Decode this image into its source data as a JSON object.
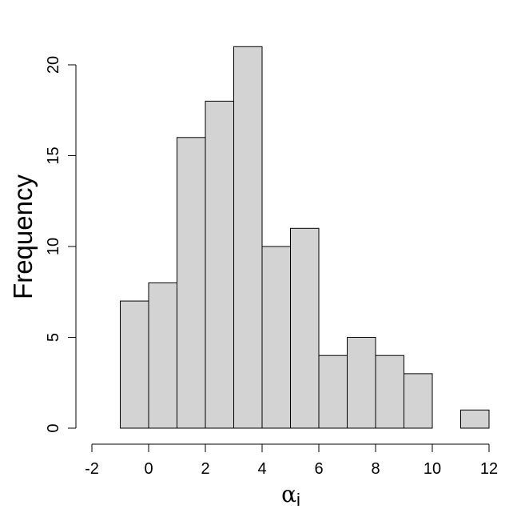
{
  "chart_data": {
    "type": "bar",
    "subtype": "histogram",
    "bin_edges": [
      -1,
      0,
      1,
      2,
      3,
      4,
      5,
      6,
      7,
      8,
      9,
      10,
      11,
      12
    ],
    "values": [
      7,
      8,
      16,
      18,
      21,
      10,
      11,
      4,
      5,
      4,
      3,
      0,
      1
    ],
    "xlabel_symbol": "α",
    "xlabel_subscript": "i",
    "ylabel": "Frequency",
    "xlim": [
      -2,
      12
    ],
    "ylim": [
      0,
      21
    ],
    "xticks": [
      "-2",
      "0",
      "2",
      "4",
      "6",
      "8",
      "10",
      "12"
    ],
    "yticks": [
      "0",
      "5",
      "10",
      "15",
      "20"
    ],
    "bar_color": "#d3d3d3",
    "edge_color": "#000000",
    "grid": false,
    "legend": "none"
  }
}
